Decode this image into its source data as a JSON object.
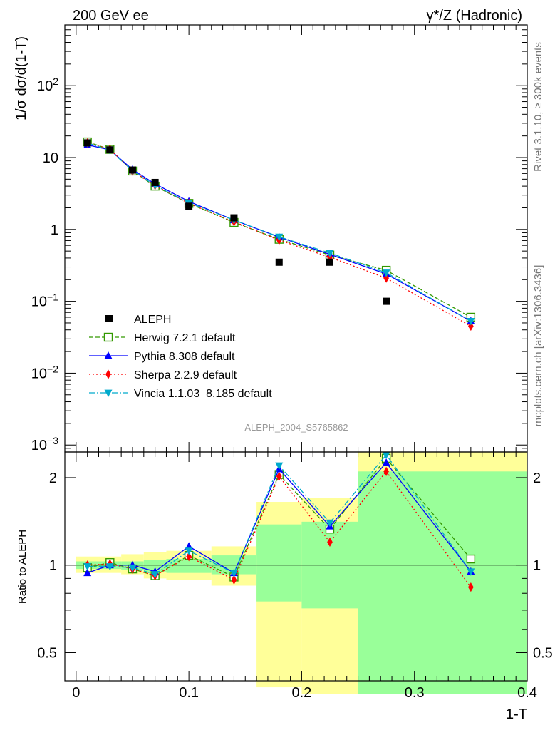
{
  "header": {
    "left": "200 GeV ee",
    "right": "γ*/Z (Hadronic)"
  },
  "side_labels": {
    "rivet": "Rivet 3.1.10, ≥ 300k events",
    "mcplots": "mcplots.cern.ch [arXiv:1306.3436]"
  },
  "analysis_label": "ALEPH_2004_S5765862",
  "chart_data": [
    {
      "type": "scatter",
      "panel": "main",
      "scale": "log",
      "ylabel": "1/σ  dσ/d(1-T)",
      "xlim": [
        -0.01,
        0.4
      ],
      "ylim": [
        0.0008,
        700
      ],
      "ytick_labels": [
        {
          "value": 0.001,
          "base": "10",
          "exp": "−3"
        },
        {
          "value": 0.01,
          "base": "10",
          "exp": "−2"
        },
        {
          "value": 0.1,
          "base": "10",
          "exp": "−1"
        },
        {
          "value": 1,
          "base": "1",
          "exp": ""
        },
        {
          "value": 10,
          "base": "10",
          "exp": ""
        },
        {
          "value": 100,
          "base": "10",
          "exp": "2"
        }
      ],
      "data": {
        "name": "ALEPH",
        "x": [
          0.01,
          0.03,
          0.05,
          0.07,
          0.1,
          0.14,
          0.18,
          0.225,
          0.275,
          0.35
        ],
        "y": [
          16.0,
          12.8,
          6.7,
          4.5,
          2.1,
          1.45,
          0.35,
          0.35,
          0.1,
          null
        ]
      },
      "series": [
        {
          "name": "Herwig 7.2.1 default",
          "color": "#339900",
          "style": "dashed",
          "marker": "open-square",
          "x": [
            0.01,
            0.03,
            0.05,
            0.07,
            0.1,
            0.14,
            0.18,
            0.225,
            0.275,
            0.35
          ],
          "y": [
            16.5,
            13.0,
            6.5,
            4.0,
            2.3,
            1.25,
            0.73,
            0.44,
            0.27,
            0.06
          ]
        },
        {
          "name": "Pythia 8.308 default",
          "color": "#0000ff",
          "style": "solid",
          "marker": "triangle-up",
          "x": [
            0.01,
            0.03,
            0.05,
            0.07,
            0.1,
            0.14,
            0.18,
            0.225,
            0.275,
            0.35
          ],
          "y": [
            15.0,
            12.8,
            6.8,
            4.3,
            2.45,
            1.35,
            0.78,
            0.45,
            0.24,
            0.053
          ]
        },
        {
          "name": "Sherpa 2.2.9 default",
          "color": "#ff0000",
          "style": "dotted",
          "marker": "diamond",
          "x": [
            0.01,
            0.03,
            0.05,
            0.07,
            0.1,
            0.14,
            0.18,
            0.225,
            0.275,
            0.35
          ],
          "y": [
            16.0,
            13.0,
            6.5,
            4.1,
            2.3,
            1.28,
            0.71,
            0.41,
            0.21,
            0.045
          ]
        },
        {
          "name": "Vincia 1.1.03_8.185 default",
          "color": "#00aacc",
          "style": "dashdot",
          "marker": "triangle-down",
          "x": [
            0.01,
            0.03,
            0.05,
            0.07,
            0.1,
            0.14,
            0.18,
            0.225,
            0.275,
            0.35
          ],
          "y": [
            16.0,
            12.6,
            6.6,
            4.1,
            2.35,
            1.35,
            0.79,
            0.47,
            0.25,
            0.053
          ]
        }
      ]
    },
    {
      "type": "line",
      "panel": "ratio",
      "scale": "log",
      "ylabel": "Ratio to ALEPH",
      "xlabel": "1-T",
      "xlim": [
        -0.01,
        0.4
      ],
      "ylim": [
        0.4,
        2.45
      ],
      "yticks": [
        0.5,
        1,
        2
      ],
      "ytick_labels": [
        "0.5",
        "1",
        "2"
      ],
      "xticks": [
        0,
        0.1,
        0.2,
        0.3,
        0.4
      ],
      "xtick_labels": [
        "0",
        "0.1",
        "0.2",
        "0.3",
        "0.4"
      ],
      "uncertainty_bands": [
        {
          "x0": 0.0,
          "x1": 0.02,
          "stat": [
            0.97,
            1.03
          ],
          "total": [
            0.94,
            1.07
          ]
        },
        {
          "x0": 0.02,
          "x1": 0.04,
          "stat": [
            0.97,
            1.03
          ],
          "total": [
            0.94,
            1.07
          ]
        },
        {
          "x0": 0.04,
          "x1": 0.06,
          "stat": [
            0.96,
            1.03
          ],
          "total": [
            0.93,
            1.09
          ]
        },
        {
          "x0": 0.06,
          "x1": 0.08,
          "stat": [
            0.95,
            1.04
          ],
          "total": [
            0.9,
            1.11
          ]
        },
        {
          "x0": 0.08,
          "x1": 0.12,
          "stat": [
            0.94,
            1.05
          ],
          "total": [
            0.89,
            1.12
          ]
        },
        {
          "x0": 0.12,
          "x1": 0.16,
          "stat": [
            0.93,
            1.08
          ],
          "total": [
            0.85,
            1.16
          ]
        },
        {
          "x0": 0.16,
          "x1": 0.2,
          "stat": [
            0.75,
            1.38
          ],
          "total": [
            0.38,
            1.65
          ]
        },
        {
          "x0": 0.2,
          "x1": 0.25,
          "stat": [
            0.71,
            1.41
          ],
          "total": [
            0.36,
            1.7
          ]
        },
        {
          "x0": 0.25,
          "x1": 0.4,
          "stat": [
            0.36,
            2.1
          ],
          "total": [
            0.36,
            2.45
          ]
        }
      ],
      "series": [
        {
          "name": "Herwig 7.2.1 default",
          "x": [
            0.01,
            0.03,
            0.05,
            0.07,
            0.1,
            0.14,
            0.18,
            0.225,
            0.275,
            0.35
          ],
          "y": [
            0.98,
            1.02,
            0.97,
            0.92,
            1.08,
            0.91,
            2.05,
            1.33,
            2.33,
            1.05
          ]
        },
        {
          "name": "Pythia 8.308 default",
          "x": [
            0.01,
            0.03,
            0.05,
            0.07,
            0.1,
            0.14,
            0.18,
            0.225,
            0.275,
            0.35
          ],
          "y": [
            0.94,
            1.0,
            1.0,
            0.95,
            1.16,
            0.94,
            2.14,
            1.36,
            2.25,
            0.95
          ]
        },
        {
          "name": "Sherpa 2.2.9 default",
          "x": [
            0.01,
            0.03,
            0.05,
            0.07,
            0.1,
            0.14,
            0.18,
            0.225,
            0.275,
            0.35
          ],
          "y": [
            1.0,
            1.01,
            0.97,
            0.92,
            1.07,
            0.89,
            2.02,
            1.2,
            2.1,
            0.84
          ]
        },
        {
          "name": "Vincia 1.1.03_8.185 default",
          "x": [
            0.01,
            0.03,
            0.05,
            0.07,
            0.1,
            0.14,
            0.18,
            0.225,
            0.275,
            0.35
          ],
          "y": [
            0.99,
            0.99,
            0.98,
            0.93,
            1.12,
            0.94,
            2.2,
            1.4,
            2.4,
            0.95
          ]
        }
      ]
    }
  ]
}
